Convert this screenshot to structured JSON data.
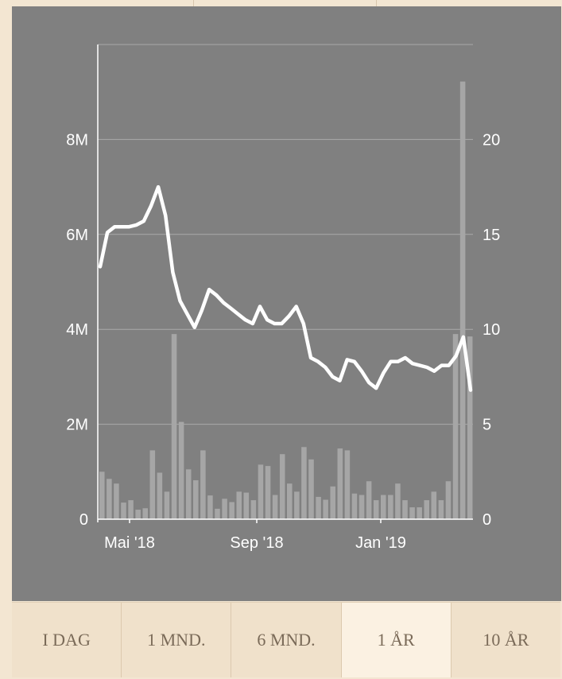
{
  "colors": {
    "page_background": "#f3e6d2",
    "chart_background": "#808080",
    "line": "#ffffff",
    "volume_bars": "#a6a6a6",
    "grid": "#a9a9a9",
    "tab_background": "#f0e1cb",
    "tab_active_background": "#fbf1e2",
    "tab_text": "#7a6a58"
  },
  "range_tabs": [
    {
      "label": "I DAG",
      "active": false
    },
    {
      "label": "1 MND.",
      "active": false
    },
    {
      "label": "6 MND.",
      "active": false
    },
    {
      "label": "1 ÅR",
      "active": true
    },
    {
      "label": "10 ÅR",
      "active": false
    }
  ],
  "chart_data": {
    "type": "line",
    "grid": true,
    "x_tick_labels": [
      "Mai '18",
      "Sep '18",
      "Jan '19"
    ],
    "left_axis": {
      "tick_labels": [
        "0",
        "2M",
        "4M",
        "6M",
        "8M"
      ],
      "ylim": [
        0,
        10000000
      ]
    },
    "right_axis": {
      "tick_labels": [
        "0",
        "5",
        "10",
        "15",
        "20"
      ],
      "ylim": [
        0,
        25
      ]
    },
    "series": [
      {
        "type": "line",
        "axis": "right",
        "values": [
          13.3,
          15.1,
          15.4,
          15.4,
          15.4,
          15.5,
          15.7,
          16.5,
          17.5,
          16.0,
          13.0,
          11.5,
          10.8,
          10.1,
          11.0,
          12.1,
          11.8,
          11.4,
          11.1,
          10.8,
          10.5,
          10.3,
          11.2,
          10.5,
          10.3,
          10.3,
          10.7,
          11.2,
          10.3,
          8.5,
          8.3,
          8.0,
          7.5,
          7.3,
          8.4,
          8.3,
          7.8,
          7.2,
          6.9,
          7.7,
          8.3,
          8.3,
          8.5,
          8.2,
          8.1,
          8.0,
          7.8,
          8.1,
          8.1,
          8.6,
          9.6,
          6.8
        ]
      },
      {
        "type": "bar",
        "axis": "left",
        "values": [
          1000000,
          850000,
          750000,
          350000,
          400000,
          200000,
          230000,
          1450000,
          980000,
          580000,
          3900000,
          2050000,
          1050000,
          820000,
          1450000,
          500000,
          220000,
          430000,
          360000,
          580000,
          560000,
          400000,
          1150000,
          1120000,
          510000,
          1370000,
          750000,
          580000,
          1520000,
          1260000,
          470000,
          410000,
          690000,
          1490000,
          1450000,
          540000,
          510000,
          800000,
          400000,
          510000,
          510000,
          750000,
          400000,
          250000,
          250000,
          400000,
          580000,
          400000,
          800000,
          3900000,
          9220000,
          3850000
        ]
      }
    ]
  }
}
